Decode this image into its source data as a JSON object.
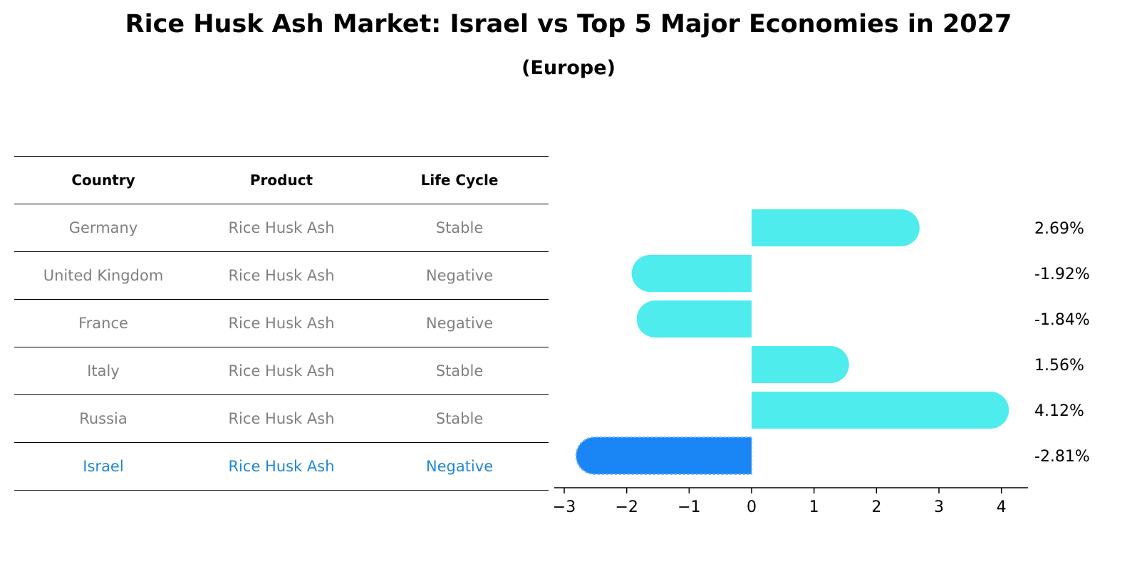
{
  "title": "Rice Husk Ash Market: Israel vs Top 5 Major Economies in 2027",
  "subtitle": "(Europe)",
  "table": {
    "headers": [
      "Country",
      "Product",
      "Life Cycle"
    ],
    "rows": [
      [
        "Germany",
        "Rice Husk Ash",
        "Stable"
      ],
      [
        "United Kingdom",
        "Rice Husk Ash",
        "Negative"
      ],
      [
        "France",
        "Rice Husk Ash",
        "Negative"
      ],
      [
        "Italy",
        "Rice Husk Ash",
        "Stable"
      ],
      [
        "Russia",
        "Rice Husk Ash",
        "Stable"
      ],
      [
        "Israel",
        "Rice Husk Ash",
        "Negative"
      ]
    ]
  },
  "chart_data": {
    "type": "bar",
    "orientation": "horizontal",
    "categories": [
      "Germany",
      "United Kingdom",
      "France",
      "Italy",
      "Russia",
      "Israel"
    ],
    "values": [
      2.69,
      -1.92,
      -1.84,
      1.56,
      4.12,
      -2.81
    ],
    "value_labels": [
      "2.69%",
      "-1.92%",
      "-1.84%",
      "1.56%",
      "4.12%",
      "-2.81%"
    ],
    "xticks": [
      -3,
      -2,
      -1,
      0,
      1,
      2,
      3,
      4
    ],
    "xtick_labels": [
      "−3",
      "−2",
      "−1",
      "0",
      "1",
      "2",
      "3",
      "4"
    ],
    "xlim": [
      -3.15,
      4.45
    ],
    "highlight": "Israel",
    "colors": {
      "bar": "#4eecec",
      "highlight": "#1a85f5"
    }
  }
}
